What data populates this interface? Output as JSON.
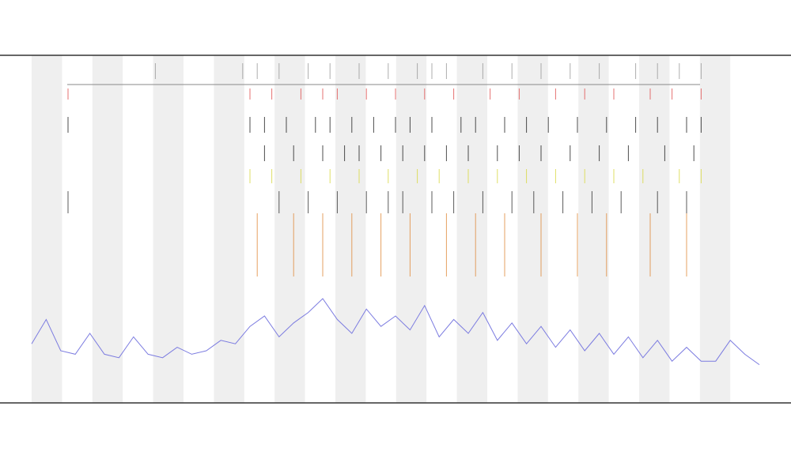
{
  "chart_data": {
    "type": "line",
    "xlim": [
      0,
      100
    ],
    "ylim": [
      0,
      100
    ],
    "x": [
      0,
      2,
      4,
      6,
      8,
      10,
      12,
      14,
      16,
      18,
      20,
      22,
      24,
      26,
      28,
      30,
      32,
      34,
      36,
      38,
      40,
      42,
      44,
      46,
      48,
      50,
      52,
      54,
      56,
      58,
      60,
      62,
      64,
      66,
      68,
      70,
      72,
      74,
      76,
      78,
      80,
      82,
      84,
      86,
      88,
      90,
      92,
      94,
      96,
      98,
      100
    ],
    "series": [
      {
        "color": "#7b7be0",
        "values": [
          17,
          24,
          15,
          14,
          20,
          14,
          13,
          19,
          14,
          13,
          16,
          14,
          15,
          18,
          17,
          22,
          25,
          19,
          23,
          26,
          30,
          24,
          20,
          27,
          22,
          25,
          21,
          28,
          19,
          24,
          20,
          26,
          18,
          23,
          17,
          22,
          16,
          21,
          15,
          20,
          14,
          19,
          13,
          18,
          12,
          16,
          12,
          12,
          18,
          14,
          11
        ]
      }
    ],
    "events": [
      {
        "color": "#999999",
        "x": [
          17,
          29,
          31,
          34,
          38,
          41,
          45,
          49,
          53,
          55,
          57,
          62,
          66,
          70,
          74,
          78,
          83,
          86,
          89,
          92
        ]
      },
      {
        "color": "#e05050",
        "x": [
          5,
          30,
          33,
          37,
          40,
          42,
          46,
          50,
          54,
          58,
          63,
          67,
          72,
          76,
          80,
          85,
          88,
          92
        ]
      },
      {
        "color": "#222222",
        "x": [
          5,
          30,
          32,
          35,
          39,
          41,
          44,
          47,
          50,
          52,
          55,
          59,
          61,
          65,
          68,
          71,
          75,
          79,
          83,
          86,
          90,
          92
        ]
      },
      {
        "color": "#222222",
        "x": [
          32,
          36,
          40,
          43,
          45,
          48,
          51,
          54,
          57,
          60,
          64,
          67,
          70,
          74,
          78,
          82,
          87,
          91
        ]
      },
      {
        "color": "#d8d840",
        "x": [
          30,
          33,
          37,
          41,
          45,
          49,
          53,
          56,
          60,
          64,
          68,
          72,
          76,
          80,
          84,
          89,
          92
        ]
      },
      {
        "color": "#333333",
        "x": [
          5,
          34,
          38,
          42,
          46,
          49,
          51,
          55,
          58,
          62,
          66,
          69,
          73,
          77,
          81,
          86,
          90
        ]
      },
      {
        "color": "#e08a3a",
        "x": [
          31,
          36,
          40,
          44,
          48,
          52,
          57,
          61,
          65,
          70,
          75,
          79,
          85,
          90
        ]
      }
    ]
  }
}
